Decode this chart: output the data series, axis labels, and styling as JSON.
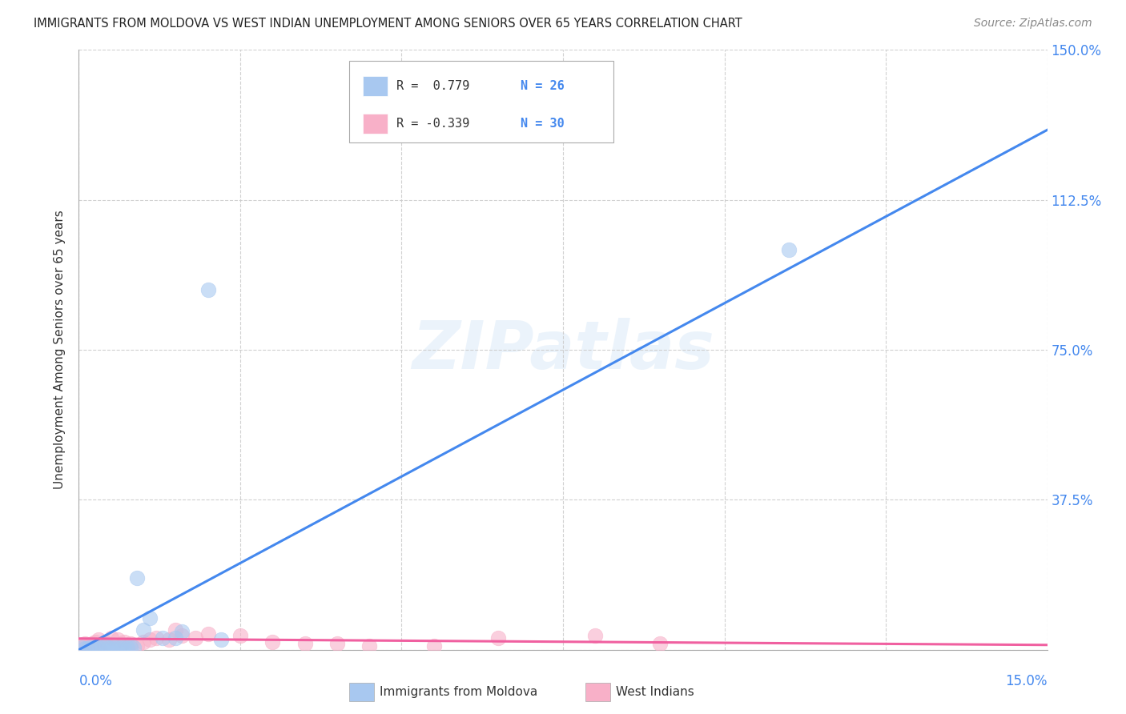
{
  "title": "IMMIGRANTS FROM MOLDOVA VS WEST INDIAN UNEMPLOYMENT AMONG SENIORS OVER 65 YEARS CORRELATION CHART",
  "source": "Source: ZipAtlas.com",
  "ylabel": "Unemployment Among Seniors over 65 years",
  "xlim": [
    0.0,
    15.0
  ],
  "ylim": [
    0.0,
    150.0
  ],
  "yticks": [
    0.0,
    37.5,
    75.0,
    112.5,
    150.0
  ],
  "ytick_labels": [
    "",
    "37.5%",
    "75.0%",
    "112.5%",
    "150.0%"
  ],
  "xtick_positions": [
    0.0,
    2.5,
    5.0,
    7.5,
    10.0,
    12.5,
    15.0
  ],
  "background_color": "#ffffff",
  "grid_color": "#cccccc",
  "moldova_color": "#a8c8f0",
  "moldova_edge_color": "#a8c8f0",
  "moldova_line_color": "#4488ee",
  "west_indian_color": "#f8b0c8",
  "west_indian_edge_color": "#f8b0c8",
  "west_indian_line_color": "#f060a0",
  "moldova_R": 0.779,
  "moldova_N": 26,
  "west_indian_R": -0.339,
  "west_indian_N": 30,
  "watermark": "ZIPatlas",
  "moldova_scatter_x": [
    0.05,
    0.1,
    0.15,
    0.2,
    0.25,
    0.3,
    0.35,
    0.4,
    0.45,
    0.5,
    0.55,
    0.6,
    0.65,
    0.7,
    0.75,
    0.8,
    0.85,
    0.9,
    1.0,
    1.1,
    1.3,
    1.6,
    2.0,
    2.2,
    11.0,
    1.5
  ],
  "moldova_scatter_y": [
    0.5,
    0.3,
    0.5,
    0.5,
    0.5,
    0.5,
    0.5,
    1.0,
    0.5,
    0.5,
    0.5,
    0.5,
    0.5,
    0.5,
    0.5,
    0.5,
    0.5,
    18.0,
    5.0,
    8.0,
    3.0,
    4.5,
    90.0,
    2.5,
    100.0,
    3.0
  ],
  "west_indian_scatter_x": [
    0.05,
    0.1,
    0.15,
    0.2,
    0.25,
    0.3,
    0.4,
    0.5,
    0.6,
    0.7,
    0.8,
    0.9,
    1.0,
    1.1,
    1.2,
    1.4,
    1.6,
    1.8,
    2.0,
    2.5,
    3.0,
    3.5,
    4.0,
    4.5,
    5.5,
    6.5,
    8.0,
    9.0,
    0.3,
    1.5
  ],
  "west_indian_scatter_y": [
    1.0,
    1.5,
    1.0,
    1.5,
    2.0,
    2.5,
    2.0,
    3.0,
    2.5,
    2.0,
    1.5,
    1.0,
    2.0,
    2.5,
    3.0,
    2.5,
    3.5,
    3.0,
    4.0,
    3.5,
    2.0,
    1.5,
    1.5,
    1.0,
    1.0,
    3.0,
    3.5,
    1.5,
    0.3,
    5.0
  ],
  "moldova_line_x0": 0.0,
  "moldova_line_y0": 0.0,
  "moldova_line_x1": 15.0,
  "moldova_line_y1": 130.0,
  "wi_line_x0": 0.0,
  "wi_line_y0": 2.8,
  "wi_line_x1": 15.0,
  "wi_line_y1": 1.2
}
